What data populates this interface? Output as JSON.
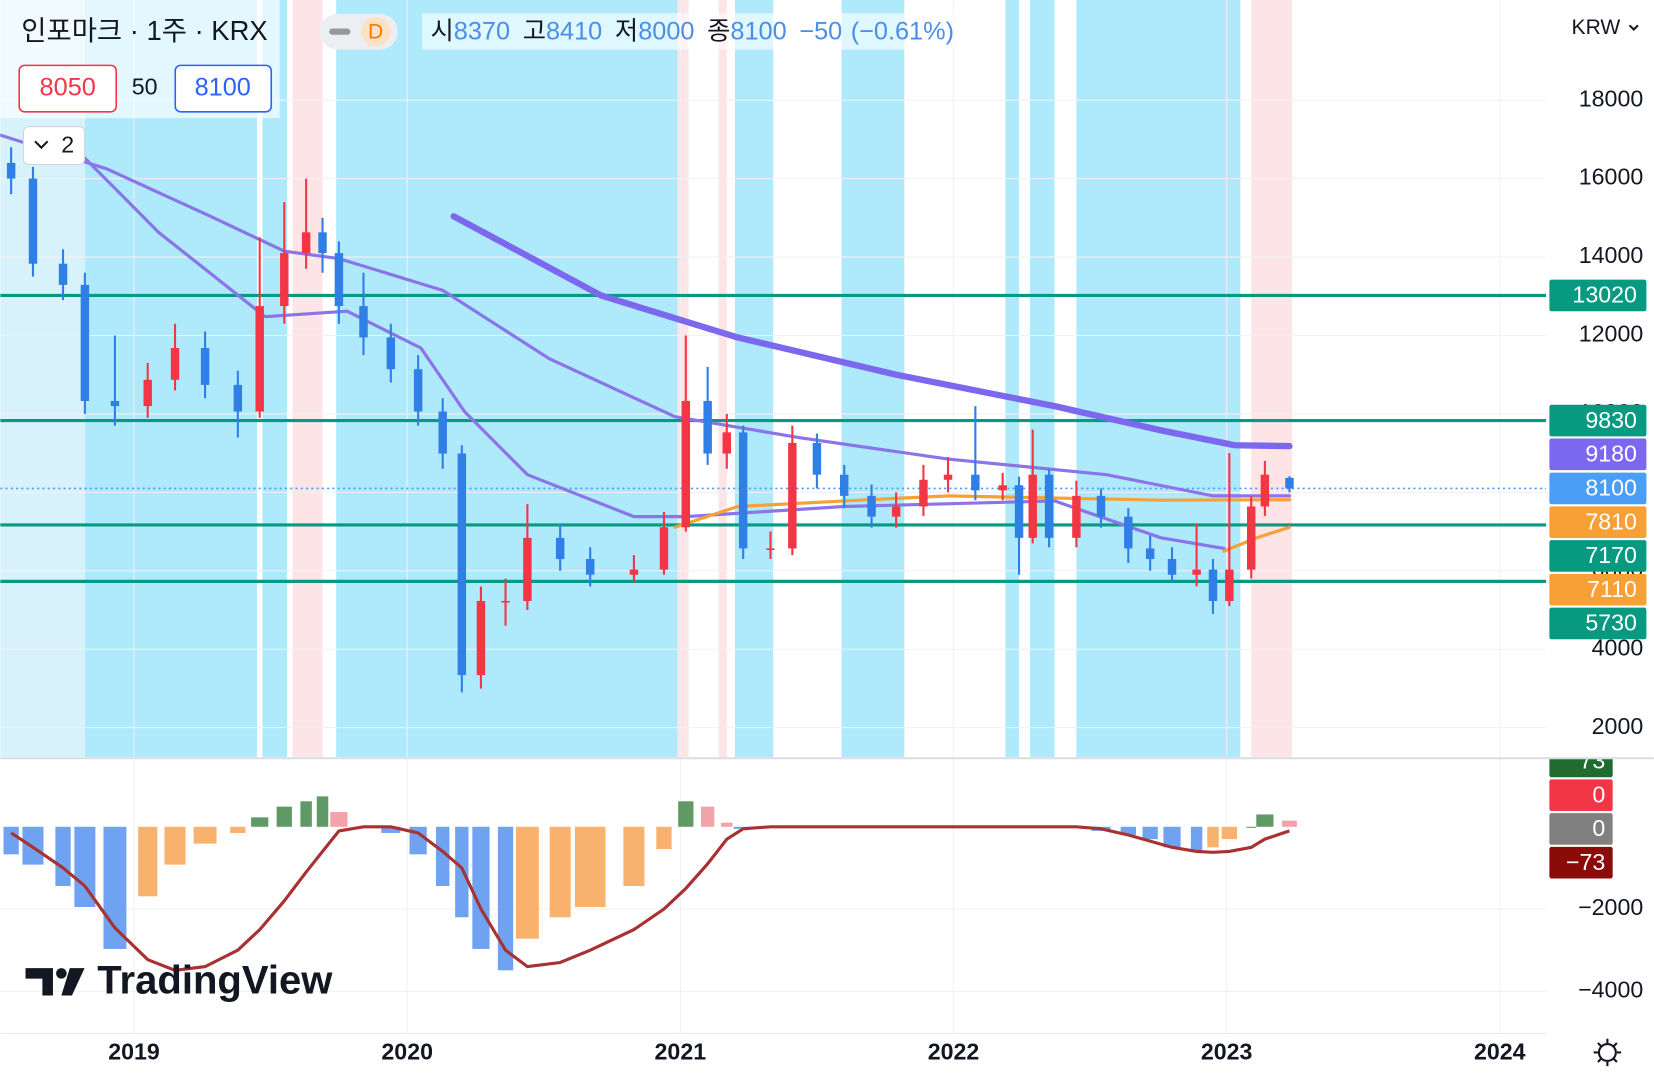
{
  "chart_data": {
    "type": "candlestick",
    "title": "인포마크 · 1주 · KRX",
    "interval": "D",
    "ohlc_labels": [
      "시",
      "고",
      "저",
      "종"
    ],
    "change": {
      "value": -50,
      "label": "−50"
    },
    "change_pct": {
      "value": -0.61,
      "label": "(−0.61%)"
    },
    "bid": 8050,
    "spread": 50,
    "ask": 8100,
    "indicator_count": 2,
    "currency": "KRW",
    "watermark": "TradingView",
    "up_color": "#f23645",
    "down_color": "#2f7fe6",
    "x": [
      2018.55,
      2018.63,
      2018.74,
      2018.82,
      2018.93,
      2019.05,
      2019.15,
      2019.26,
      2019.38,
      2019.46,
      2019.55,
      2019.63,
      2019.69,
      2019.75,
      2019.84,
      2019.94,
      2020.04,
      2020.13,
      2020.2,
      2020.27,
      2020.36,
      2020.44,
      2020.56,
      2020.67,
      2020.83,
      2020.94,
      2021.02,
      2021.1,
      2021.17,
      2021.23,
      2021.33,
      2021.41,
      2021.5,
      2021.6,
      2021.7,
      2021.79,
      2021.89,
      2021.98,
      2022.08,
      2022.18,
      2022.24,
      2022.29,
      2022.35,
      2022.45,
      2022.54,
      2022.64,
      2022.72,
      2022.8,
      2022.89,
      2022.95,
      2023.01,
      2023.09,
      2023.14,
      2023.23
    ],
    "open": [
      16400,
      16000,
      13830,
      13290,
      10330,
      10200,
      10870,
      11680,
      10740,
      10060,
      12750,
      14100,
      14630,
      14100,
      12750,
      11950,
      11140,
      10060,
      8990,
      3340,
      5230,
      5230,
      6840,
      6300,
      5900,
      6030,
      7110,
      10330,
      8990,
      9530,
      6570,
      6570,
      9260,
      8450,
      7910,
      7380,
      7640,
      8320,
      8450,
      8050,
      8180,
      6840,
      8450,
      6840,
      7910,
      7380,
      6570,
      6300,
      5900,
      6030,
      5230,
      6030,
      7640,
      8370
    ],
    "high": [
      16800,
      16300,
      14200,
      13600,
      12000,
      11300,
      12300,
      12100,
      11100,
      14500,
      15400,
      16000,
      15000,
      14400,
      13600,
      12300,
      11500,
      10400,
      9200,
      5600,
      5800,
      7700,
      7200,
      6600,
      6400,
      7500,
      12000,
      11200,
      10000,
      9700,
      7000,
      9700,
      9500,
      8700,
      8200,
      8000,
      8700,
      8900,
      10200,
      8500,
      8400,
      9600,
      8600,
      8300,
      8100,
      7600,
      6900,
      6600,
      7200,
      6300,
      9000,
      7900,
      8800,
      8410
    ],
    "low": [
      15600,
      13500,
      12900,
      10000,
      9700,
      9900,
      10600,
      10400,
      9400,
      9900,
      12300,
      13700,
      13600,
      12300,
      11500,
      10800,
      9700,
      8600,
      2900,
      3000,
      4600,
      5000,
      6000,
      5600,
      5700,
      5900,
      7000,
      8700,
      8600,
      6300,
      6300,
      6400,
      8100,
      7600,
      7100,
      7100,
      7400,
      8000,
      7800,
      7800,
      5900,
      6700,
      6600,
      6600,
      7100,
      6200,
      6000,
      5700,
      5600,
      4900,
      5100,
      5800,
      7400,
      8000
    ],
    "close": [
      16000,
      13830,
      13290,
      10330,
      10200,
      10870,
      11680,
      10740,
      10060,
      12750,
      14100,
      14630,
      14100,
      12750,
      11950,
      11140,
      10060,
      8990,
      3340,
      5230,
      5230,
      6840,
      6300,
      5900,
      6030,
      7110,
      10330,
      8990,
      9530,
      6570,
      6570,
      9260,
      8450,
      7910,
      7380,
      7640,
      8320,
      8450,
      8050,
      8180,
      6840,
      8450,
      6840,
      7910,
      7380,
      6570,
      6300,
      5900,
      6030,
      5230,
      6030,
      7640,
      8450,
      8100
    ],
    "xlim": [
      2018.51,
      2024.17
    ],
    "xticks": [
      2019,
      2020,
      2021,
      2022,
      2023,
      2024
    ],
    "ylim": [
      1247,
      20554
    ],
    "yticks": [
      2000,
      4000,
      6000,
      8000,
      10000,
      12000,
      14000,
      16000,
      18000
    ],
    "grid": true,
    "levels": [
      13020,
      9830,
      7170,
      5730
    ],
    "level_color": "#089981",
    "current_color": "#4a9ef5",
    "overlays": [
      {
        "color": "#7b68ee",
        "width": 6,
        "price_label": true,
        "x": [
          2020.17,
          2020.71,
          2021.21,
          2021.79,
          2022.37,
          2022.76,
          2023.03,
          2023.23
        ],
        "values": [
          15040,
          13020,
          11950,
          11000,
          10200,
          9580,
          9200,
          9180
        ]
      },
      {
        "color": "#8a74e8",
        "width": 3,
        "price_label": false,
        "x": [
          2018.51,
          2018.9,
          2019.28,
          2019.55,
          2019.75,
          2020.13,
          2020.52,
          2020.98,
          2021.44,
          2021.98,
          2022.56,
          2022.95,
          2023.23
        ],
        "values": [
          17110,
          16250,
          15040,
          14150,
          13960,
          13150,
          11410,
          9930,
          9390,
          8850,
          8450,
          7910,
          7910
        ]
      },
      {
        "color": "#8a74e8",
        "width": 3,
        "price_label": false,
        "x": [
          2018.82,
          2019.09,
          2019.48,
          2019.78,
          2020.05,
          2020.21,
          2020.44,
          2020.83,
          2021.02,
          2021.6,
          2022.37,
          2022.76,
          2022.99
        ],
        "values": [
          16520,
          14630,
          12480,
          12620,
          11680,
          10060,
          8450,
          7380,
          7380,
          7640,
          7780,
          6840,
          6570
        ]
      },
      {
        "color": "#f7a035",
        "width": 3,
        "price_label": true,
        "x": [
          2020.98,
          2021.21,
          2021.6,
          2021.98,
          2022.76,
          2023.23
        ],
        "values": [
          7110,
          7640,
          7780,
          7910,
          7800,
          7810
        ]
      },
      {
        "color": "#f7a035",
        "width": 3,
        "price_label": true,
        "x": [
          2022.99,
          2023.11,
          2023.23
        ],
        "values": [
          6500,
          6840,
          7110
        ]
      }
    ],
    "bands": [
      {
        "from": 2018.51,
        "to": 2018.82,
        "color": "#d8f2fb"
      },
      {
        "from": 2018.82,
        "to": 2019.45,
        "color": "#aeeafc"
      },
      {
        "from": 2019.47,
        "to": 2019.56,
        "color": "#aeeafc"
      },
      {
        "from": 2019.58,
        "to": 2019.69,
        "color": "#fde4e6"
      },
      {
        "from": 2019.74,
        "to": 2020.99,
        "color": "#aeeafc"
      },
      {
        "from": 2020.99,
        "to": 2021.03,
        "color": "#fde4e6"
      },
      {
        "from": 2021.14,
        "to": 2021.17,
        "color": "#fde4e6"
      },
      {
        "from": 2021.2,
        "to": 2021.34,
        "color": "#aeeafc"
      },
      {
        "from": 2021.59,
        "to": 2021.82,
        "color": "#aeeafc"
      },
      {
        "from": 2022.19,
        "to": 2022.24,
        "color": "#aeeafc"
      },
      {
        "from": 2022.28,
        "to": 2022.37,
        "color": "#aeeafc"
      },
      {
        "from": 2022.45,
        "to": 2023.05,
        "color": "#aeeafc"
      },
      {
        "from": 2023.09,
        "to": 2023.24,
        "color": "#fde4e6"
      }
    ],
    "macd": {
      "ylim": [
        -5026,
        1641
      ],
      "yticks": [
        {
          "value": -2000,
          "label": "−2000"
        },
        {
          "value": -4000,
          "label": "−4000"
        }
      ],
      "histogram": [
        -670,
        -920,
        -1440,
        -1950,
        -2970,
        -1690,
        -920,
        -410,
        -150,
        230,
        490,
        620,
        740,
        360,
        0,
        -150,
        -670,
        -1440,
        -2200,
        -2970,
        -3490,
        -2720,
        -2200,
        -1950,
        -1440,
        -540,
        620,
        490,
        100,
        -50,
        -20,
        0,
        0,
        0,
        0,
        0,
        0,
        0,
        0,
        0,
        0,
        0,
        0,
        0,
        -100,
        -200,
        -300,
        -500,
        -600,
        -500,
        -300,
        0,
        300,
        150
      ],
      "signal": [
        -150,
        -500,
        -1000,
        -1440,
        -2460,
        -3230,
        -3490,
        -3400,
        -3000,
        -2500,
        -1800,
        -1100,
        -600,
        -100,
        0,
        0,
        -150,
        -600,
        -1000,
        -2000,
        -3000,
        -3400,
        -3300,
        -3000,
        -2500,
        -2000,
        -1500,
        -900,
        -300,
        -50,
        0,
        0,
        0,
        0,
        0,
        0,
        0,
        0,
        0,
        0,
        0,
        0,
        0,
        0,
        -50,
        -200,
        -350,
        -500,
        -600,
        -620,
        -600,
        -500,
        -300,
        -100
      ],
      "signal_color": "#a83232",
      "hist_colors": {
        "pos_up": "#5f9a66",
        "pos_down": "#f2a3aa",
        "neg_down": "#6fa3f2",
        "neg_up": "#f9b26e"
      },
      "labels": [
        {
          "value": 73,
          "color": "#1f6b30"
        },
        {
          "value": 0,
          "color": "#f23645"
        },
        {
          "value": 0,
          "color": "#808080"
        },
        {
          "value": -73,
          "label": "−73",
          "color": "#8b0a0a"
        }
      ]
    }
  }
}
